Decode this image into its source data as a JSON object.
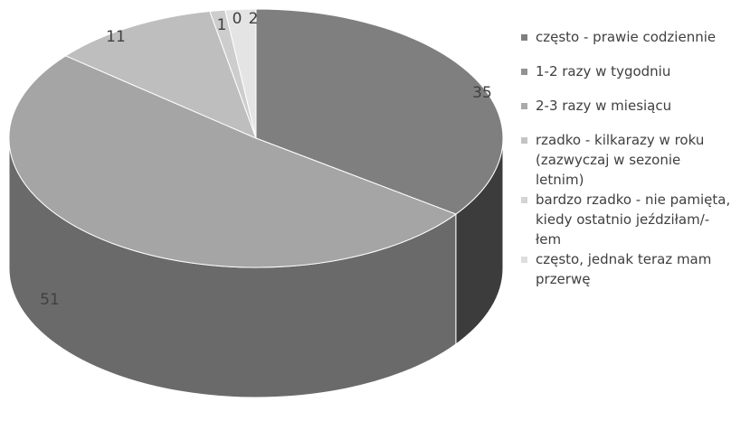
{
  "chart_data": {
    "type": "pie",
    "title": "",
    "is_3d": true,
    "legend_position": "right",
    "categories": [
      "często - prawie codziennie",
      "1-2 razy w tygodniu",
      "2-3 razy w miesiącu",
      "rzadko - kilkarazy w roku (zazwyczaj w sezonie letnim)",
      "bardzo rzadko - nie pamięta, kiedy ostatnio jeździłam/-łem",
      "często, jednak teraz mam przerwę"
    ],
    "values": [
      35,
      51,
      11,
      1,
      0,
      2
    ],
    "data_labels": [
      "35",
      "51",
      "11",
      "1",
      "0",
      "2"
    ],
    "colors": [
      "#7f7f7f",
      "#a5a5a5",
      "#bebebe",
      "#cdcdcd",
      "#dadada",
      "#e4e4e4"
    ],
    "side_colors": [
      "#3c3c3c",
      "#6a6a6a",
      "#808080",
      "#8e8e8e",
      "#9a9a9a",
      "#a4a4a4"
    ],
    "legend_swatch_colors": [
      "#7f7f7f",
      "#929292",
      "#aaaaaa",
      "#c4c4c4",
      "#d4d4d4",
      "#dedede"
    ]
  }
}
